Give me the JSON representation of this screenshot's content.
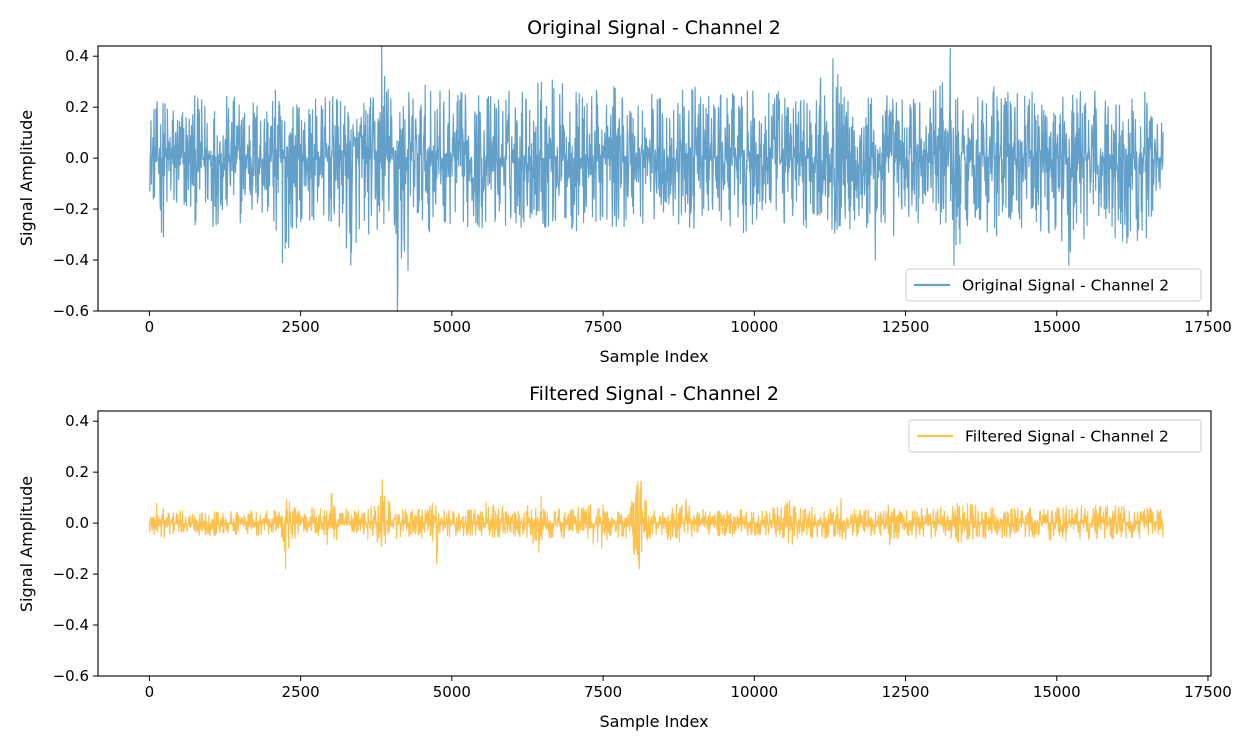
{
  "chart_data": [
    {
      "type": "line",
      "title": "Original Signal - Channel 2",
      "xlabel": "Sample Index",
      "ylabel": "Signal Amplitude",
      "xlim": [
        -850,
        17550
      ],
      "ylim": [
        -0.6,
        0.44
      ],
      "x_ticks": [
        0,
        2500,
        5000,
        7500,
        10000,
        12500,
        15000,
        17500
      ],
      "x_tick_labels": [
        "0",
        "2500",
        "5000",
        "7500",
        "10000",
        "12500",
        "15000",
        "17500"
      ],
      "y_ticks": [
        -0.6,
        -0.4,
        -0.2,
        0.0,
        0.2,
        0.4
      ],
      "y_tick_labels": [
        "−0.6",
        "−0.4",
        "−0.2",
        "0.0",
        "0.2",
        "0.4"
      ],
      "legend_position": "lower-right",
      "series": [
        {
          "name": "Original Signal - Channel 2",
          "color": "#1f77b4",
          "alpha": 0.7,
          "sample_count": 16760,
          "envelope": {
            "x": [
              0,
              250,
              500,
              1000,
              1500,
              2000,
              2200,
              2500,
              3000,
              3330,
              3500,
              3800,
              3840,
              4000,
              4100,
              4500,
              5000,
              5500,
              6000,
              6500,
              7000,
              7500,
              8000,
              8500,
              9000,
              9500,
              10000,
              10500,
              11000,
              11300,
              11500,
              12000,
              12500,
              13000,
              13240,
              13300,
              13500,
              14000,
              14500,
              15000,
              15200,
              15500,
              16000,
              16500,
              16760
            ],
            "max": [
              0.2,
              0.25,
              0.24,
              0.25,
              0.25,
              0.28,
              0.26,
              0.22,
              0.25,
              0.21,
              0.23,
              0.26,
              0.44,
              0.27,
              0.25,
              0.29,
              0.27,
              0.26,
              0.28,
              0.34,
              0.28,
              0.27,
              0.3,
              0.25,
              0.28,
              0.25,
              0.27,
              0.26,
              0.3,
              0.39,
              0.27,
              0.26,
              0.26,
              0.27,
              0.43,
              0.26,
              0.24,
              0.3,
              0.26,
              0.27,
              0.28,
              0.27,
              0.25,
              0.27,
              0.13
            ],
            "min": [
              -0.13,
              -0.34,
              -0.26,
              -0.27,
              -0.26,
              -0.26,
              -0.41,
              -0.25,
              -0.28,
              -0.42,
              -0.28,
              -0.35,
              -0.27,
              -0.3,
              -0.6,
              -0.3,
              -0.26,
              -0.29,
              -0.27,
              -0.28,
              -0.3,
              -0.28,
              -0.27,
              -0.26,
              -0.28,
              -0.28,
              -0.3,
              -0.27,
              -0.28,
              -0.3,
              -0.27,
              -0.4,
              -0.26,
              -0.28,
              -0.27,
              -0.42,
              -0.27,
              -0.31,
              -0.28,
              -0.3,
              -0.42,
              -0.3,
              -0.34,
              -0.32,
              -0.07
            ]
          }
        }
      ]
    },
    {
      "type": "line",
      "title": "Filtered Signal - Channel 2",
      "xlabel": "Sample Index",
      "ylabel": "Signal Amplitude",
      "xlim": [
        -850,
        17550
      ],
      "ylim": [
        -0.6,
        0.44
      ],
      "x_ticks": [
        0,
        2500,
        5000,
        7500,
        10000,
        12500,
        15000,
        17500
      ],
      "x_tick_labels": [
        "0",
        "2500",
        "5000",
        "7500",
        "10000",
        "12500",
        "15000",
        "17500"
      ],
      "y_ticks": [
        -0.6,
        -0.4,
        -0.2,
        0.0,
        0.2,
        0.4
      ],
      "y_tick_labels": [
        "−0.6",
        "−0.4",
        "−0.2",
        "0.0",
        "0.2",
        "0.4"
      ],
      "legend_position": "upper-right",
      "series": [
        {
          "name": "Filtered Signal - Channel 2",
          "color": "#ffa500",
          "alpha": 0.7,
          "sample_count": 16760,
          "envelope": {
            "x": [
              0,
              500,
              1000,
              1500,
              2000,
              2200,
              2250,
              2350,
              2500,
              2900,
              3000,
              3050,
              3200,
              3500,
              3800,
              3850,
              3900,
              4200,
              4700,
              4750,
              4800,
              5000,
              5500,
              5600,
              6000,
              6400,
              6450,
              6600,
              7000,
              7400,
              7450,
              7600,
              7950,
              8100,
              8150,
              8300,
              8800,
              8900,
              9000,
              9500,
              10000,
              10500,
              10600,
              11000,
              11400,
              11450,
              11600,
              12000,
              12200,
              12250,
              12400,
              13000,
              13500,
              14000,
              14500,
              15000,
              15500,
              16000,
              16500,
              16760
            ],
            "max": [
              0.09,
              0.05,
              0.05,
              0.05,
              0.05,
              0.06,
              0.19,
              0.07,
              0.05,
              0.08,
              0.13,
              0.1,
              0.06,
              0.05,
              0.08,
              0.17,
              0.1,
              0.05,
              0.08,
              0.15,
              0.08,
              0.05,
              0.06,
              0.1,
              0.05,
              0.09,
              0.13,
              0.06,
              0.06,
              0.09,
              0.1,
              0.05,
              0.08,
              0.21,
              0.12,
              0.05,
              0.08,
              0.14,
              0.05,
              0.06,
              0.05,
              0.07,
              0.1,
              0.06,
              0.08,
              0.12,
              0.06,
              0.05,
              0.06,
              0.1,
              0.05,
              0.07,
              0.08,
              0.06,
              0.06,
              0.07,
              0.07,
              0.07,
              0.06,
              0.07
            ],
            "min": [
              -0.08,
              -0.05,
              -0.05,
              -0.05,
              -0.05,
              -0.06,
              -0.18,
              -0.08,
              -0.05,
              -0.08,
              -0.12,
              -0.09,
              -0.06,
              -0.06,
              -0.08,
              -0.14,
              -0.09,
              -0.05,
              -0.08,
              -0.16,
              -0.08,
              -0.05,
              -0.06,
              -0.1,
              -0.05,
              -0.09,
              -0.13,
              -0.06,
              -0.06,
              -0.1,
              -0.12,
              -0.05,
              -0.08,
              -0.18,
              -0.12,
              -0.05,
              -0.08,
              -0.11,
              -0.05,
              -0.06,
              -0.05,
              -0.07,
              -0.09,
              -0.06,
              -0.07,
              -0.1,
              -0.06,
              -0.05,
              -0.06,
              -0.15,
              -0.05,
              -0.07,
              -0.08,
              -0.06,
              -0.06,
              -0.07,
              -0.07,
              -0.07,
              -0.06,
              -0.06
            ]
          }
        }
      ]
    }
  ]
}
